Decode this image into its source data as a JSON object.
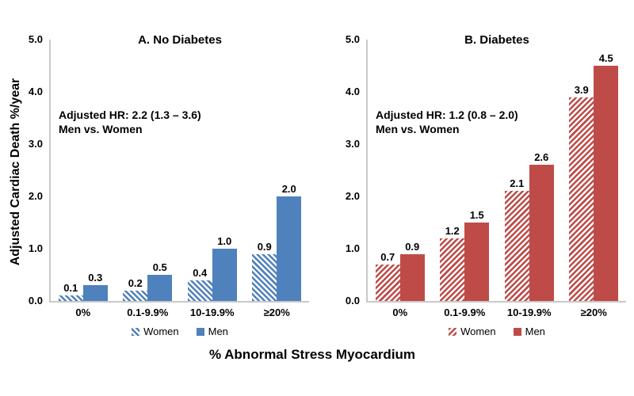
{
  "figure": {
    "y_axis_title": "Adjusted Cardiac Death %/year",
    "x_axis_title": "% Abnormal Stress Myocardium",
    "background": "#FFFFFF",
    "axis_line_color": "#C9C9C9",
    "text_color": "#000000"
  },
  "chart_data": [
    {
      "type": "bar",
      "title": "A. No Diabetes",
      "annotation": [
        "Adjusted HR: 2.2 (1.3 – 3.6)",
        "Men vs. Women"
      ],
      "categories": [
        "0%",
        "0.1-9.9%",
        "10-19.9%",
        "≥20%"
      ],
      "series": [
        {
          "name": "Women",
          "style": "hatched",
          "hatch_direction": "down-right",
          "values": [
            0.1,
            0.2,
            0.4,
            0.9
          ]
        },
        {
          "name": "Men",
          "style": "solid",
          "values": [
            0.3,
            0.5,
            1.0,
            2.0
          ]
        }
      ],
      "color": "#4F81BD",
      "ylim": [
        0,
        5
      ],
      "yticks": [
        "5.0",
        "4.0",
        "3.0",
        "2.0",
        "1.0",
        "0.0"
      ],
      "xlabel": "% Abnormal Stress Myocardium",
      "ylabel": "Adjusted Cardiac Death %/year",
      "grid": false,
      "legend_position": "bottom"
    },
    {
      "type": "bar",
      "title": "B. Diabetes",
      "annotation": [
        "Adjusted HR: 1.2 (0.8 – 2.0)",
        "Men vs. Women"
      ],
      "categories": [
        "0%",
        "0.1-9.9%",
        "10-19.9%",
        "≥20%"
      ],
      "series": [
        {
          "name": "Women",
          "style": "hatched",
          "hatch_direction": "up-right",
          "values": [
            0.7,
            1.2,
            2.1,
            3.9
          ]
        },
        {
          "name": "Men",
          "style": "solid",
          "values": [
            0.9,
            1.5,
            2.6,
            4.5
          ]
        }
      ],
      "color": "#BE4B48",
      "ylim": [
        0,
        5
      ],
      "yticks": [
        "5.0",
        "4.0",
        "3.0",
        "2.0",
        "1.0",
        "0.0"
      ],
      "xlabel": "% Abnormal Stress Myocardium",
      "ylabel": "Adjusted Cardiac Death %/year",
      "grid": false,
      "legend_position": "bottom"
    }
  ]
}
